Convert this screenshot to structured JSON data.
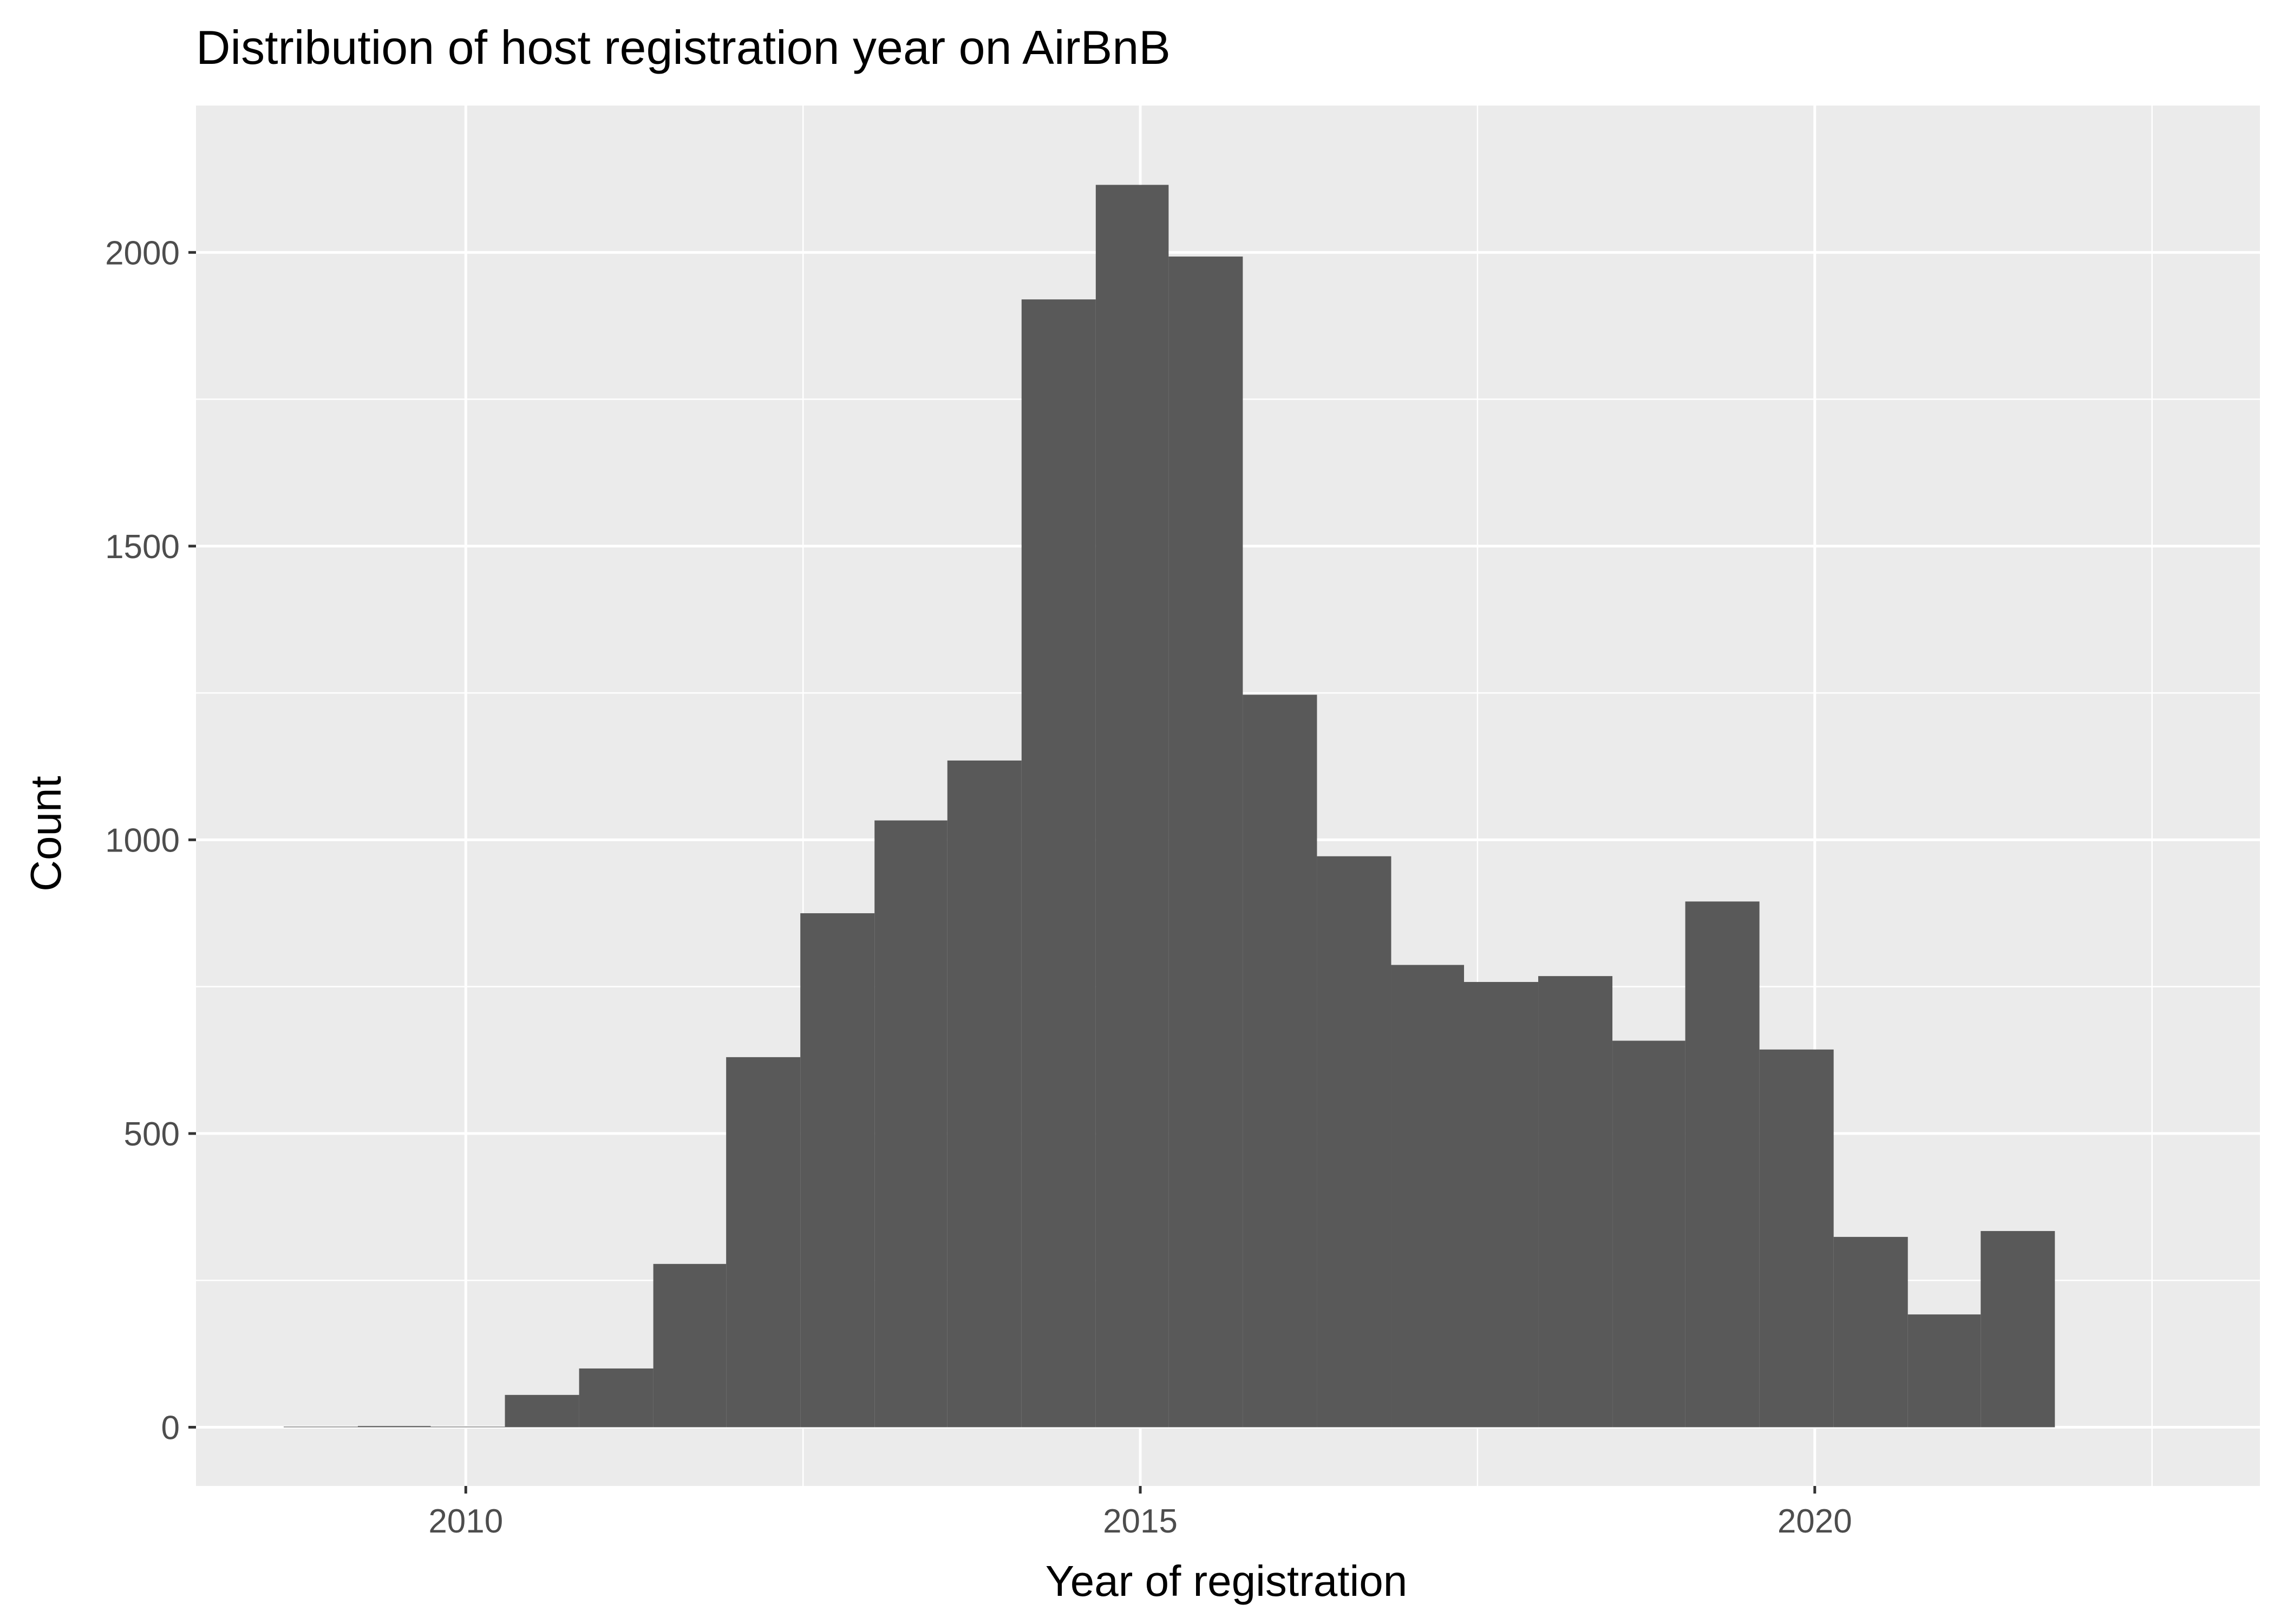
{
  "chart_data": {
    "type": "histogram",
    "title": "Distribution of host registration year on AirBnB",
    "xlabel": "Year of registration",
    "ylabel": "Count",
    "xlim": [
      2008,
      2023.3
    ],
    "ylim": [
      -100,
      2250
    ],
    "xticks": [
      2010,
      2015,
      2020
    ],
    "yticks": [
      0,
      500,
      1000,
      1500,
      2000
    ],
    "grid": true,
    "colors": {
      "panel": "#ebebeb",
      "grid": "#ffffff",
      "bar": "#595959",
      "text": "#000000",
      "tick_text": "#4d4d4d",
      "tick_mark": "#333333"
    },
    "bins": [
      {
        "x0": 2008.65,
        "x1": 2009.2,
        "count": 1
      },
      {
        "x0": 2009.2,
        "x1": 2009.74,
        "count": 2
      },
      {
        "x0": 2009.74,
        "x1": 2010.29,
        "count": 1
      },
      {
        "x0": 2010.29,
        "x1": 2010.84,
        "count": 55
      },
      {
        "x0": 2010.84,
        "x1": 2011.39,
        "count": 100
      },
      {
        "x0": 2011.39,
        "x1": 2011.93,
        "count": 278
      },
      {
        "x0": 2011.93,
        "x1": 2012.48,
        "count": 630
      },
      {
        "x0": 2012.48,
        "x1": 2013.03,
        "count": 875
      },
      {
        "x0": 2013.03,
        "x1": 2013.57,
        "count": 1033
      },
      {
        "x0": 2013.57,
        "x1": 2014.12,
        "count": 1135
      },
      {
        "x0": 2014.12,
        "x1": 2014.67,
        "count": 1920
      },
      {
        "x0": 2014.67,
        "x1": 2015.21,
        "count": 2115
      },
      {
        "x0": 2015.21,
        "x1": 2015.76,
        "count": 1993
      },
      {
        "x0": 2015.76,
        "x1": 2016.31,
        "count": 1247
      },
      {
        "x0": 2016.31,
        "x1": 2016.86,
        "count": 972
      },
      {
        "x0": 2016.86,
        "x1": 2017.4,
        "count": 787
      },
      {
        "x0": 2017.4,
        "x1": 2017.95,
        "count": 758
      },
      {
        "x0": 2017.95,
        "x1": 2018.5,
        "count": 768
      },
      {
        "x0": 2018.5,
        "x1": 2019.04,
        "count": 658
      },
      {
        "x0": 2019.04,
        "x1": 2019.59,
        "count": 895
      },
      {
        "x0": 2019.59,
        "x1": 2020.14,
        "count": 643
      },
      {
        "x0": 2020.14,
        "x1": 2020.69,
        "count": 324
      },
      {
        "x0": 2020.69,
        "x1": 2021.23,
        "count": 192
      },
      {
        "x0": 2021.23,
        "x1": 2021.78,
        "count": 334
      }
    ]
  }
}
